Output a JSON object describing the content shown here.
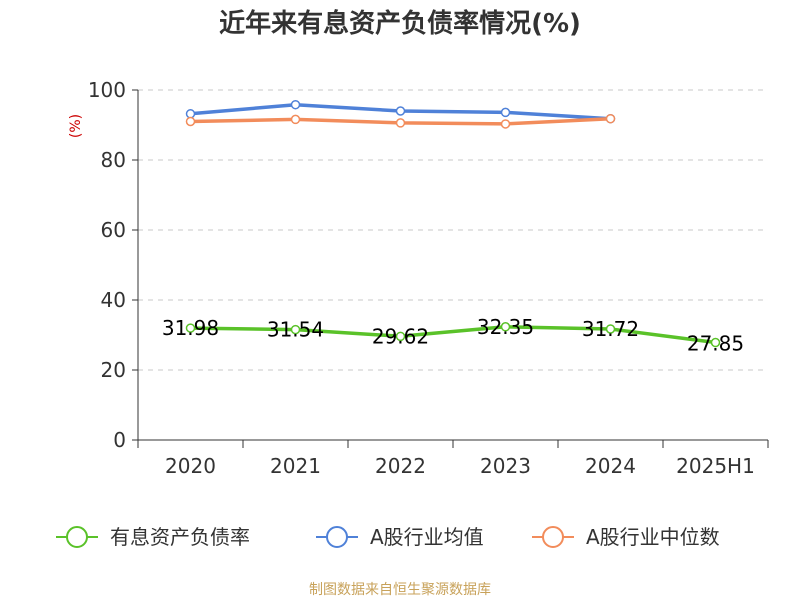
{
  "chart_data": {
    "type": "line",
    "title": "近年来有息资产负债率情况(%)",
    "ylabel": "(%)",
    "xlabel": "",
    "categories": [
      "2020",
      "2021",
      "2022",
      "2023",
      "2024",
      "2025H1"
    ],
    "ylim": [
      0,
      100
    ],
    "yticks": [
      0,
      20,
      40,
      60,
      80,
      100
    ],
    "grid": true,
    "legend_position": "bottom",
    "series": [
      {
        "name": "有息资产负债率",
        "color": "#5ac229",
        "show_labels": true,
        "values": [
          31.98,
          31.54,
          29.62,
          32.35,
          31.72,
          27.85
        ]
      },
      {
        "name": "A股行业均值",
        "color": "#4f81d8",
        "show_labels": false,
        "values": [
          93.2,
          95.8,
          94.0,
          93.6,
          91.8,
          null
        ]
      },
      {
        "name": "A股行业中位数",
        "color": "#f28c5b",
        "show_labels": false,
        "values": [
          91.0,
          91.6,
          90.6,
          90.3,
          91.8,
          null
        ]
      }
    ]
  },
  "source": "制图数据来自恒生聚源数据库"
}
